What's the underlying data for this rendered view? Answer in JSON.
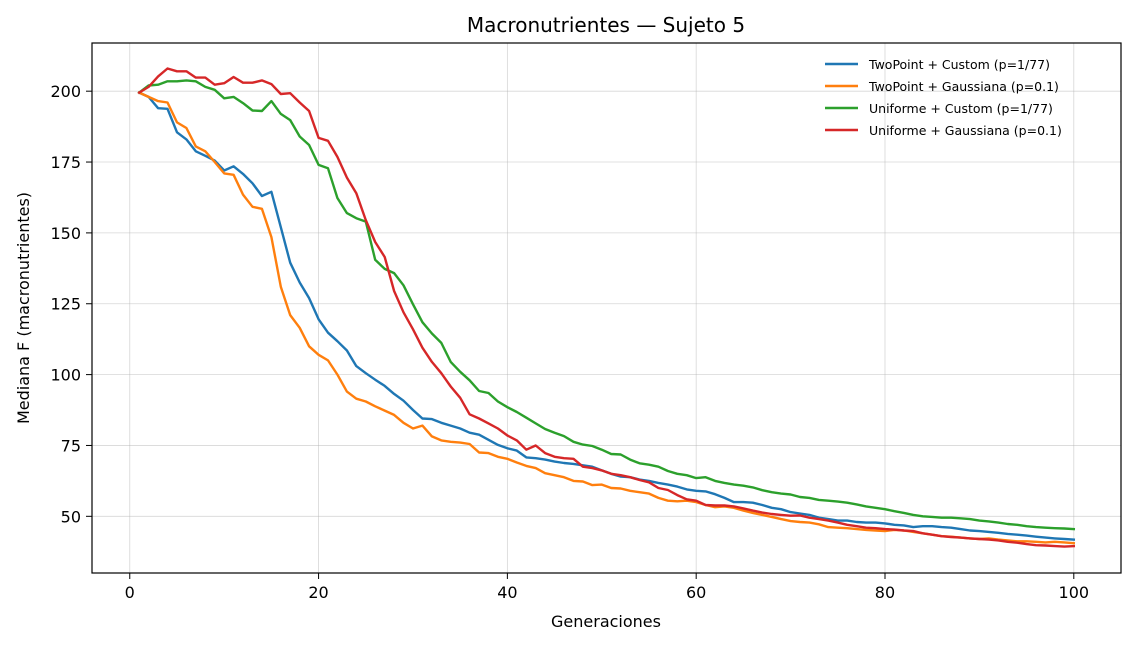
{
  "chart_data": {
    "type": "line",
    "title": "Macronutrientes — Sujeto 5",
    "xlabel": "Generaciones",
    "ylabel": "Mediana F (macronutrientes)",
    "xlim": [
      -4,
      105
    ],
    "ylim": [
      30,
      217
    ],
    "xticks": [
      0,
      20,
      40,
      60,
      80,
      100
    ],
    "yticks": [
      50,
      75,
      100,
      125,
      150,
      175,
      200
    ],
    "grid": true,
    "legend_position": "top-right",
    "x": [
      1,
      2,
      3,
      4,
      5,
      6,
      7,
      8,
      9,
      10,
      11,
      12,
      13,
      14,
      15,
      16,
      17,
      18,
      19,
      20,
      21,
      22,
      23,
      24,
      25,
      26,
      27,
      28,
      29,
      30,
      31,
      32,
      33,
      34,
      35,
      36,
      37,
      38,
      39,
      40,
      41,
      42,
      43,
      44,
      45,
      46,
      47,
      48,
      49,
      50,
      51,
      52,
      53,
      54,
      55,
      56,
      57,
      58,
      59,
      60,
      61,
      62,
      63,
      64,
      65,
      66,
      67,
      68,
      69,
      70,
      71,
      72,
      73,
      74,
      75,
      76,
      77,
      78,
      79,
      80,
      81,
      82,
      83,
      84,
      85,
      86,
      87,
      88,
      89,
      90,
      91,
      92,
      93,
      94,
      95,
      96,
      97,
      98,
      99,
      100
    ],
    "series": [
      {
        "name": "TwoPoint + Custom (p=1/77)",
        "color": "#1f77b4",
        "values": [
          199.5,
          198.0,
          194.0,
          193.8,
          185.5,
          183.0,
          178.8,
          177.2,
          175.5,
          172.0,
          173.5,
          170.8,
          167.5,
          163.0,
          164.5,
          152.0,
          139.5,
          132.5,
          127.0,
          119.5,
          114.8,
          111.8,
          108.5,
          103.0,
          100.5,
          98.2,
          96.0,
          93.2,
          90.8,
          87.5,
          84.5,
          84.3,
          83.0,
          82.0,
          81.0,
          79.5,
          78.8,
          77.0,
          75.2,
          74.0,
          73.2,
          70.8,
          70.5,
          70.0,
          69.3,
          68.8,
          68.5,
          68.0,
          67.5,
          66.2,
          65.0,
          64.0,
          63.8,
          63.0,
          62.5,
          61.8,
          61.2,
          60.5,
          59.5,
          59.0,
          58.8,
          57.8,
          56.5,
          55.0,
          55.0,
          54.8,
          54.0,
          53.0,
          52.5,
          51.5,
          51.0,
          50.5,
          49.5,
          49.0,
          48.5,
          48.5,
          48.0,
          47.8,
          47.8,
          47.5,
          47.0,
          46.8,
          46.2,
          46.5,
          46.5,
          46.2,
          46.0,
          45.5,
          45.0,
          44.8,
          44.5,
          44.2,
          43.8,
          43.5,
          43.2,
          42.8,
          42.5,
          42.2,
          42.0,
          41.8
        ]
      },
      {
        "name": "TwoPoint + Gaussiana (p=0.1)",
        "color": "#ff7f0e",
        "values": [
          199.5,
          198.0,
          196.5,
          196.0,
          189.0,
          187.0,
          180.5,
          178.8,
          175.0,
          171.0,
          170.5,
          163.5,
          159.2,
          158.5,
          148.5,
          131.0,
          121.0,
          116.5,
          110.0,
          107.0,
          105.0,
          100.0,
          94.0,
          91.5,
          90.5,
          88.8,
          87.3,
          85.8,
          83.0,
          81.0,
          82.0,
          78.2,
          76.8,
          76.3,
          76.0,
          75.5,
          72.5,
          72.3,
          71.0,
          70.3,
          69.0,
          67.8,
          67.0,
          65.2,
          64.5,
          63.8,
          62.5,
          62.3,
          61.0,
          61.2,
          60.0,
          59.8,
          59.0,
          58.5,
          58.0,
          56.5,
          55.5,
          55.3,
          55.5,
          55.0,
          54.0,
          53.2,
          53.5,
          53.0,
          52.0,
          51.2,
          50.5,
          49.8,
          49.0,
          48.3,
          48.0,
          47.8,
          47.2,
          46.2,
          46.0,
          45.8,
          45.5,
          45.2,
          45.0,
          44.8,
          45.2,
          45.0,
          44.5,
          44.0,
          43.5,
          43.0,
          42.8,
          42.5,
          42.2,
          42.0,
          42.2,
          41.8,
          41.5,
          41.2,
          41.2,
          41.0,
          40.8,
          41.0,
          40.8,
          40.5
        ]
      },
      {
        "name": "Uniforme + Custom (p=1/77)",
        "color": "#2ca02c",
        "values": [
          199.5,
          202.0,
          202.3,
          203.5,
          203.5,
          203.8,
          203.5,
          201.5,
          200.5,
          197.5,
          198.0,
          195.8,
          193.2,
          193.0,
          196.5,
          192.0,
          189.8,
          184.0,
          181.0,
          174.0,
          172.8,
          162.3,
          157.0,
          155.2,
          154.0,
          140.5,
          137.3,
          135.8,
          131.5,
          124.8,
          118.5,
          114.5,
          111.2,
          104.5,
          101.0,
          98.0,
          94.2,
          93.5,
          90.5,
          88.5,
          86.8,
          84.8,
          82.8,
          80.8,
          79.5,
          78.3,
          76.3,
          75.3,
          74.8,
          73.5,
          72.0,
          71.8,
          70.0,
          68.7,
          68.2,
          67.5,
          66.0,
          65.0,
          64.5,
          63.5,
          63.8,
          62.5,
          61.8,
          61.2,
          60.8,
          60.2,
          59.2,
          58.5,
          58.0,
          57.7,
          56.8,
          56.5,
          55.8,
          55.5,
          55.2,
          54.8,
          54.2,
          53.5,
          53.0,
          52.5,
          51.8,
          51.2,
          50.5,
          50.0,
          49.8,
          49.5,
          49.5,
          49.3,
          49.0,
          48.5,
          48.2,
          47.8,
          47.3,
          47.0,
          46.5,
          46.2,
          46.0,
          45.8,
          45.7,
          45.5
        ]
      },
      {
        "name": "Uniforme + Gaussiana (p=0.1)",
        "color": "#d62728",
        "values": [
          199.5,
          201.5,
          205.2,
          208.0,
          207.0,
          207.0,
          204.8,
          204.8,
          202.3,
          202.8,
          205.0,
          203.0,
          203.0,
          203.8,
          202.5,
          199.0,
          199.3,
          196.0,
          193.0,
          183.5,
          182.5,
          176.8,
          169.5,
          164.0,
          154.5,
          146.8,
          141.5,
          129.5,
          122.0,
          116.0,
          109.5,
          104.5,
          100.5,
          95.8,
          91.8,
          86.0,
          84.5,
          82.8,
          81.0,
          78.5,
          76.8,
          73.5,
          75.0,
          72.3,
          71.0,
          70.5,
          70.3,
          67.5,
          67.0,
          66.2,
          65.0,
          64.5,
          63.8,
          62.8,
          62.0,
          60.0,
          59.3,
          57.5,
          56.0,
          55.5,
          54.0,
          53.8,
          53.8,
          53.5,
          52.8,
          52.0,
          51.3,
          50.8,
          50.5,
          50.2,
          50.3,
          49.5,
          49.0,
          48.5,
          47.8,
          47.0,
          46.5,
          46.0,
          45.8,
          45.5,
          45.3,
          45.0,
          44.8,
          44.0,
          43.5,
          43.0,
          42.7,
          42.5,
          42.2,
          42.0,
          41.8,
          41.5,
          41.0,
          40.7,
          40.2,
          39.8,
          39.7,
          39.5,
          39.3,
          39.5
        ]
      }
    ]
  }
}
